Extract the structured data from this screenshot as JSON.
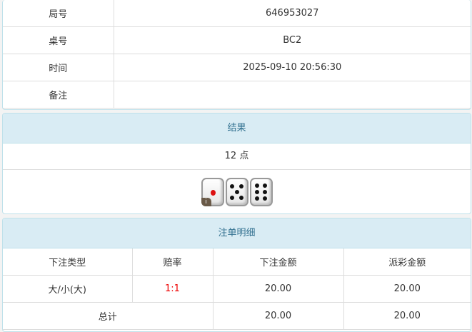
{
  "info": {
    "rows": [
      {
        "label": "局号",
        "value": "646953027"
      },
      {
        "label": "桌号",
        "value": "BC2"
      },
      {
        "label": "时间",
        "value": "2025-09-10 20:56:30"
      },
      {
        "label": "备注",
        "value": ""
      }
    ]
  },
  "result": {
    "title": "结果",
    "points": "12 点",
    "dice": [
      1,
      5,
      6
    ],
    "info_badge": "i"
  },
  "bets": {
    "title": "注单明细",
    "headers": [
      "下注类型",
      "赔率",
      "下注金额",
      "派彩金额"
    ],
    "rows": [
      {
        "type": "大/小(大)",
        "odds": "1:1",
        "amount": "20.00",
        "payout": "20.00"
      }
    ],
    "total": {
      "label": "总计",
      "amount": "20.00",
      "payout": "20.00"
    }
  }
}
